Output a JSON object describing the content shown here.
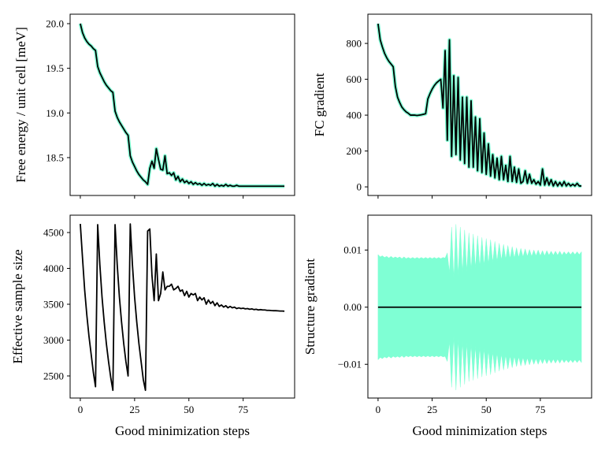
{
  "chart_data": [
    {
      "type": "line",
      "ylabel": "Free energy / unit cell [meV]",
      "x": [
        0,
        1,
        2,
        3,
        4,
        5,
        6,
        7,
        8,
        9,
        10,
        11,
        12,
        13,
        14,
        15,
        16,
        17,
        18,
        19,
        20,
        21,
        22,
        23,
        24,
        25,
        26,
        27,
        28,
        29,
        30,
        31,
        32,
        33,
        34,
        35,
        36,
        37,
        38,
        39,
        40,
        41,
        42,
        43,
        44,
        45,
        46,
        47,
        48,
        49,
        50,
        51,
        52,
        53,
        54,
        55,
        56,
        57,
        58,
        59,
        60,
        61,
        62,
        63,
        64,
        65,
        66,
        67,
        68,
        69,
        70,
        71,
        72,
        73,
        74,
        75,
        76,
        77,
        78,
        79,
        80,
        81,
        82,
        83,
        84,
        85,
        86,
        87,
        88,
        89,
        90,
        91,
        92,
        93,
        94
      ],
      "series": [
        {
          "color": "#000000",
          "halo": "#7fffd4",
          "values": [
            20.0,
            19.9,
            19.84,
            19.8,
            19.77,
            19.75,
            19.72,
            19.7,
            19.52,
            19.45,
            19.4,
            19.35,
            19.31,
            19.28,
            19.25,
            19.23,
            19.02,
            18.95,
            18.9,
            18.86,
            18.82,
            18.78,
            18.75,
            18.52,
            18.45,
            18.4,
            18.35,
            18.31,
            18.28,
            18.25,
            18.23,
            18.2,
            18.38,
            18.46,
            18.38,
            18.6,
            18.48,
            18.37,
            18.36,
            18.52,
            18.32,
            18.33,
            18.3,
            18.33,
            18.25,
            18.29,
            18.23,
            18.26,
            18.22,
            18.24,
            18.21,
            18.23,
            18.2,
            18.22,
            18.2,
            18.21,
            18.19,
            18.21,
            18.19,
            18.2,
            18.19,
            18.21,
            18.18,
            18.2,
            18.18,
            18.19,
            18.18,
            18.2,
            18.18,
            18.19,
            18.18,
            18.18,
            18.19,
            18.18,
            18.18,
            18.18,
            18.18,
            18.18,
            18.18,
            18.18,
            18.18,
            18.18,
            18.18,
            18.18,
            18.18,
            18.18,
            18.18,
            18.18,
            18.18,
            18.18,
            18.18,
            18.18,
            18.18,
            18.18,
            18.18
          ]
        }
      ],
      "xlim": [
        -4.7,
        98.7
      ],
      "xticks": [
        0,
        25,
        50,
        75
      ],
      "ylim": [
        18.076,
        20.106
      ],
      "yticks": [
        18.5,
        {
          "value": 19.0,
          "label": "19.0"
        },
        19.5,
        {
          "value": 20.0,
          "label": "20.0"
        }
      ]
    },
    {
      "type": "line",
      "ylabel": "FC gradient",
      "x": [
        0,
        1,
        2,
        3,
        4,
        5,
        6,
        7,
        8,
        9,
        10,
        11,
        12,
        13,
        14,
        15,
        16,
        17,
        18,
        19,
        20,
        21,
        22,
        23,
        24,
        25,
        26,
        27,
        28,
        29,
        30,
        31,
        32,
        33,
        34,
        35,
        36,
        37,
        38,
        39,
        40,
        41,
        42,
        43,
        44,
        45,
        46,
        47,
        48,
        49,
        50,
        51,
        52,
        53,
        54,
        55,
        56,
        57,
        58,
        59,
        60,
        61,
        62,
        63,
        64,
        65,
        66,
        67,
        68,
        69,
        70,
        71,
        72,
        73,
        74,
        75,
        76,
        77,
        78,
        79,
        80,
        81,
        82,
        83,
        84,
        85,
        86,
        87,
        88,
        89,
        90,
        91,
        92,
        93,
        94
      ],
      "series": [
        {
          "color": "#000000",
          "halo": "#7fffd4",
          "values": [
            910,
            820,
            780,
            745,
            720,
            700,
            685,
            670,
            560,
            500,
            470,
            445,
            430,
            418,
            410,
            400,
            400,
            400,
            398,
            400,
            402,
            405,
            408,
            490,
            520,
            545,
            565,
            580,
            590,
            600,
            440,
            760,
            260,
            820,
            170,
            620,
            180,
            610,
            150,
            500,
            130,
            500,
            110,
            480,
            110,
            390,
            90,
            380,
            80,
            300,
            70,
            240,
            60,
            180,
            50,
            160,
            40,
            170,
            40,
            120,
            30,
            170,
            30,
            110,
            25,
            100,
            20,
            30,
            90,
            20,
            70,
            20,
            40,
            15,
            30,
            10,
            100,
            10,
            50,
            10,
            40,
            5,
            30,
            5,
            25,
            5,
            30,
            5,
            20,
            5,
            15,
            5,
            20,
            5,
            5
          ]
        }
      ],
      "xlim": [
        -4.7,
        98.7
      ],
      "xticks": [
        0,
        25,
        50,
        75
      ],
      "ylim": [
        -48,
        963
      ],
      "yticks": [
        0,
        200,
        400,
        600,
        800
      ]
    },
    {
      "type": "line",
      "ylabel": "Effective sample size",
      "xlabel": "Good minimization steps",
      "x": [
        0,
        1,
        2,
        3,
        4,
        5,
        6,
        7,
        8,
        9,
        10,
        11,
        12,
        13,
        14,
        15,
        16,
        17,
        18,
        19,
        20,
        21,
        22,
        23,
        24,
        25,
        26,
        27,
        28,
        29,
        30,
        31,
        32,
        33,
        34,
        35,
        36,
        37,
        38,
        39,
        40,
        41,
        42,
        43,
        44,
        45,
        46,
        47,
        48,
        49,
        50,
        51,
        52,
        53,
        54,
        55,
        56,
        57,
        58,
        59,
        60,
        61,
        62,
        63,
        64,
        65,
        66,
        67,
        68,
        69,
        70,
        71,
        72,
        73,
        74,
        75,
        76,
        77,
        78,
        79,
        80,
        81,
        82,
        83,
        84,
        85,
        86,
        87,
        88,
        89,
        90,
        91,
        92,
        93,
        94
      ],
      "series": [
        {
          "color": "#000000",
          "values": [
            4620,
            4150,
            3700,
            3350,
            3050,
            2800,
            2550,
            2350,
            4610,
            4050,
            3600,
            3250,
            2950,
            2700,
            2480,
            2300,
            4610,
            4050,
            3600,
            3250,
            2950,
            2700,
            2500,
            4620,
            4050,
            3600,
            3250,
            2950,
            2700,
            2450,
            2300,
            4520,
            4550,
            3900,
            3550,
            4200,
            3550,
            3650,
            3950,
            3700,
            3750,
            3750,
            3780,
            3700,
            3720,
            3750,
            3680,
            3700,
            3620,
            3680,
            3600,
            3650,
            3630,
            3650,
            3550,
            3600,
            3560,
            3590,
            3500,
            3560,
            3510,
            3540,
            3480,
            3520,
            3470,
            3490,
            3460,
            3480,
            3450,
            3470,
            3450,
            3460,
            3440,
            3450,
            3440,
            3445,
            3435,
            3440,
            3430,
            3435,
            3425,
            3430,
            3420,
            3425,
            3420,
            3420,
            3415,
            3415,
            3412,
            3410,
            3410,
            3408,
            3405,
            3405,
            3403
          ]
        }
      ],
      "xlim": [
        -4.7,
        98.7
      ],
      "xticks": [
        0,
        25,
        50,
        75
      ],
      "ylim": [
        2192,
        4742
      ],
      "yticks": [
        2500,
        3000,
        3500,
        4000,
        4500
      ]
    },
    {
      "type": "line",
      "ylabel": "Structure gradient",
      "xlabel": "Good minimization steps",
      "x": [
        0,
        1,
        2,
        3,
        4,
        5,
        6,
        7,
        8,
        9,
        10,
        11,
        12,
        13,
        14,
        15,
        16,
        17,
        18,
        19,
        20,
        21,
        22,
        23,
        24,
        25,
        26,
        27,
        28,
        29,
        30,
        31,
        32,
        33,
        34,
        35,
        36,
        37,
        38,
        39,
        40,
        41,
        42,
        43,
        44,
        45,
        46,
        47,
        48,
        49,
        50,
        51,
        52,
        53,
        54,
        55,
        56,
        57,
        58,
        59,
        60,
        61,
        62,
        63,
        64,
        65,
        66,
        67,
        68,
        69,
        70,
        71,
        72,
        73,
        74,
        75,
        76,
        77,
        78,
        79,
        80,
        81,
        82,
        83,
        84,
        85,
        86,
        87,
        88,
        89,
        90,
        91,
        92,
        93,
        94
      ],
      "band": {
        "color": "#7fffd4",
        "upper": [
          0.0092,
          0.0088,
          0.009,
          0.0087,
          0.0089,
          0.0086,
          0.0089,
          0.0086,
          0.0088,
          0.0086,
          0.0088,
          0.0085,
          0.0088,
          0.0085,
          0.0087,
          0.0085,
          0.0087,
          0.0085,
          0.0087,
          0.0085,
          0.0087,
          0.0085,
          0.0087,
          0.0085,
          0.0087,
          0.0085,
          0.0087,
          0.0085,
          0.0087,
          0.0085,
          0.0087,
          0.0086,
          0.0095,
          0.006,
          0.014,
          0.005,
          0.0145,
          0.0055,
          0.014,
          0.006,
          0.0135,
          0.0062,
          0.013,
          0.0065,
          0.0128,
          0.0068,
          0.0125,
          0.007,
          0.0122,
          0.0072,
          0.012,
          0.0075,
          0.0118,
          0.0078,
          0.0115,
          0.008,
          0.0112,
          0.0082,
          0.011,
          0.0084,
          0.0108,
          0.0085,
          0.0106,
          0.0086,
          0.0104,
          0.0087,
          0.0103,
          0.0088,
          0.0102,
          0.0089,
          0.0101,
          0.0089,
          0.01,
          0.009,
          0.01,
          0.009,
          0.0099,
          0.009,
          0.0099,
          0.0091,
          0.0098,
          0.0091,
          0.0098,
          0.0091,
          0.0098,
          0.0091,
          0.0097,
          0.0092,
          0.0097,
          0.0092,
          0.0097,
          0.0092,
          0.0097,
          0.0092,
          0.0097
        ],
        "lower": [
          -0.0092,
          -0.0088,
          -0.009,
          -0.0087,
          -0.0089,
          -0.0086,
          -0.0089,
          -0.0086,
          -0.0088,
          -0.0086,
          -0.0088,
          -0.0085,
          -0.0088,
          -0.0085,
          -0.0087,
          -0.0085,
          -0.0087,
          -0.0085,
          -0.0087,
          -0.0085,
          -0.0087,
          -0.0085,
          -0.0087,
          -0.0085,
          -0.0087,
          -0.0085,
          -0.0087,
          -0.0085,
          -0.0087,
          -0.0085,
          -0.0087,
          -0.0086,
          -0.0095,
          -0.006,
          -0.014,
          -0.005,
          -0.0145,
          -0.0055,
          -0.014,
          -0.006,
          -0.0135,
          -0.0062,
          -0.013,
          -0.0065,
          -0.0128,
          -0.0068,
          -0.0125,
          -0.007,
          -0.0122,
          -0.0072,
          -0.012,
          -0.0075,
          -0.0118,
          -0.0078,
          -0.0115,
          -0.008,
          -0.0112,
          -0.0082,
          -0.011,
          -0.0084,
          -0.0108,
          -0.0085,
          -0.0106,
          -0.0086,
          -0.0104,
          -0.0087,
          -0.0103,
          -0.0088,
          -0.0102,
          -0.0089,
          -0.0101,
          -0.0089,
          -0.01,
          -0.009,
          -0.01,
          -0.009,
          -0.0099,
          -0.009,
          -0.0099,
          -0.0091,
          -0.0098,
          -0.0091,
          -0.0098,
          -0.0091,
          -0.0098,
          -0.0091,
          -0.0097,
          -0.0092,
          -0.0097,
          -0.0092,
          -0.0097,
          -0.0092,
          -0.0097,
          -0.0092,
          -0.0097
        ]
      },
      "series": [
        {
          "color": "#000000",
          "values": [
            0,
            0,
            0,
            0,
            0,
            0,
            0,
            0,
            0,
            0,
            0,
            0,
            0,
            0,
            0,
            0,
            0,
            0,
            0,
            0,
            0,
            0,
            0,
            0,
            0,
            0,
            0,
            0,
            0,
            0,
            0,
            0,
            0,
            0,
            0,
            0,
            0,
            0,
            0,
            0,
            0,
            0,
            0,
            0,
            0,
            0,
            0,
            0,
            0,
            0,
            0,
            0,
            0,
            0,
            0,
            0,
            0,
            0,
            0,
            0,
            0,
            0,
            0,
            0,
            0,
            0,
            0,
            0,
            0,
            0,
            0,
            0,
            0,
            0,
            0,
            0,
            0,
            0,
            0,
            0,
            0,
            0,
            0,
            0,
            0,
            0,
            0,
            0,
            0,
            0,
            0,
            0,
            0,
            0,
            0
          ]
        }
      ],
      "xlim": [
        -4.7,
        98.7
      ],
      "xticks": [
        0,
        25,
        50,
        75
      ],
      "ylim": [
        -0.0159,
        0.0161
      ],
      "yticks": [
        {
          "value": -0.01,
          "label": "−0.01"
        },
        {
          "value": 0,
          "label": "0.00"
        },
        0.01
      ]
    }
  ]
}
